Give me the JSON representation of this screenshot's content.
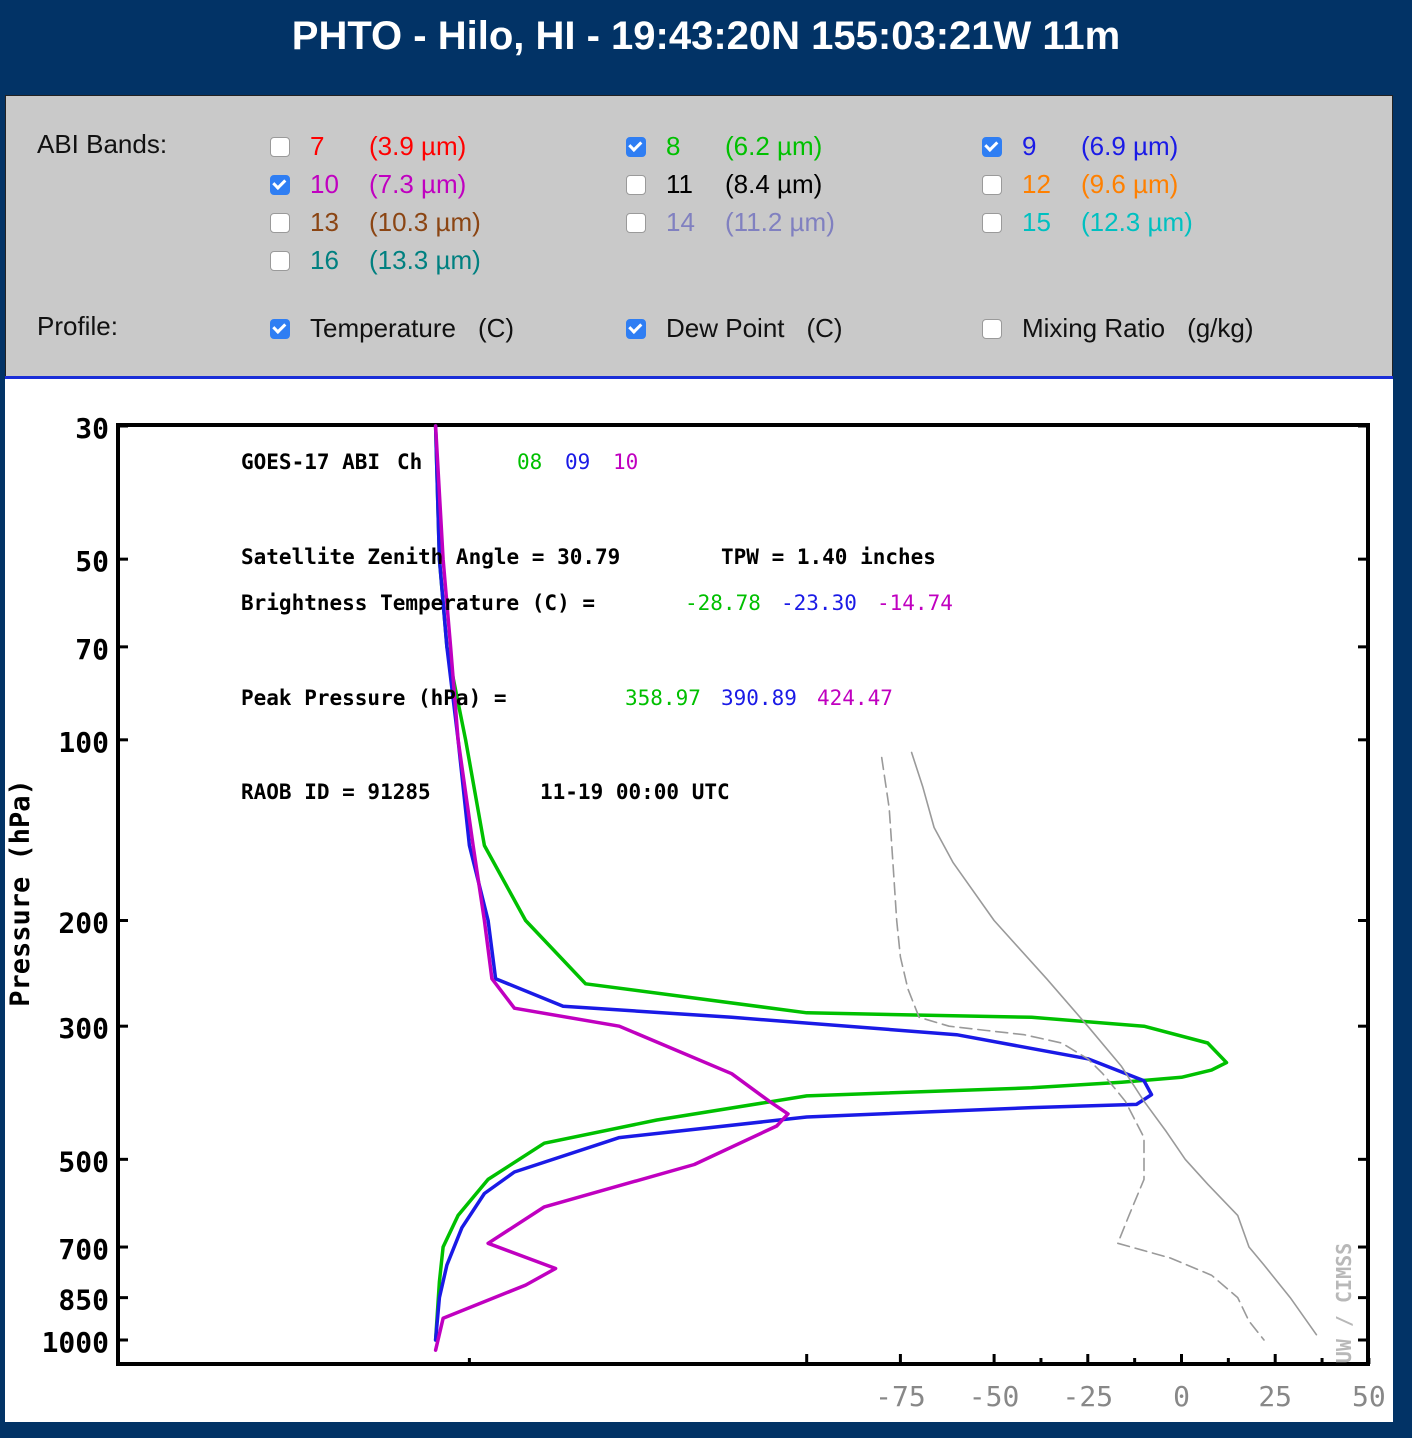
{
  "header": {
    "title": "PHTO - Hilo, HI - 19:43:20N 155:03:21W 11m"
  },
  "controls": {
    "abi_label": "ABI Bands:",
    "bands": [
      {
        "num": "7",
        "wl": "(3.9 µm)",
        "color": "#ff0000",
        "checked": false
      },
      {
        "num": "8",
        "wl": "(6.2 µm)",
        "color": "#00c000",
        "checked": true
      },
      {
        "num": "9",
        "wl": "(6.9 µm)",
        "color": "#1a1ae6",
        "checked": true
      },
      {
        "num": "10",
        "wl": "(7.3 µm)",
        "color": "#c000c0",
        "checked": true
      },
      {
        "num": "11",
        "wl": "(8.4 µm)",
        "color": "#000000",
        "checked": false
      },
      {
        "num": "12",
        "wl": "(9.6 µm)",
        "color": "#ff8000",
        "checked": false
      },
      {
        "num": "13",
        "wl": "(10.3 µm)",
        "color": "#8b4513",
        "checked": false
      },
      {
        "num": "14",
        "wl": "(11.2 µm)",
        "color": "#8080c0",
        "checked": false
      },
      {
        "num": "15",
        "wl": "(12.3 µm)",
        "color": "#00c0c0",
        "checked": false
      },
      {
        "num": "16",
        "wl": "(13.3 µm)",
        "color": "#008080",
        "checked": false
      }
    ],
    "profile_label": "Profile:",
    "profiles": [
      {
        "label": "Temperature",
        "unit": "(C)",
        "checked": true
      },
      {
        "label": "Dew Point",
        "unit": "(C)",
        "checked": true
      },
      {
        "label": "Mixing Ratio",
        "unit": "(g/kg)",
        "checked": false
      }
    ]
  },
  "chart_data": {
    "type": "line",
    "ylabel": "Pressure (hPa)",
    "y_scale": "log-pressure",
    "y_ticks": [
      30,
      50,
      70,
      100,
      200,
      300,
      500,
      700,
      850,
      1000
    ],
    "x_ticks": [
      "-75",
      "-50",
      "-25",
      "0",
      "25",
      "50"
    ],
    "xlim": [
      -200,
      50
    ],
    "ylim": [
      30,
      1050
    ],
    "watermark": "UW / CIMSS",
    "annotations": {
      "satellite": "GOES-17 ABI",
      "ch_label": "Ch",
      "channels": [
        "08",
        "09",
        "10"
      ],
      "zenith": "Satellite Zenith Angle = 30.79",
      "tpw": "TPW = 1.40 inches",
      "bt_label": "Brightness Temperature (C) =",
      "bt_values": [
        "-28.78",
        "-23.30",
        "-14.74"
      ],
      "peak_label": "Peak Pressure (hPa) =",
      "peak_values": [
        "358.97",
        "390.89",
        "424.47"
      ],
      "raob": "RAOB ID = 91285",
      "time": "11-19 00:00 UTC"
    },
    "series": [
      {
        "key": "band8",
        "color": "#00c000",
        "x": [
          -199,
          -198,
          -196,
          -191,
          -186,
          -175,
          -159,
          -100,
          -40,
          -10,
          7,
          12,
          8,
          0,
          -16,
          -40,
          -100,
          -140,
          -170,
          -185,
          -193,
          -197,
          -198,
          -199
        ],
        "p": [
          30,
          50,
          70,
          100,
          150,
          200,
          255,
          285,
          290,
          300,
          320,
          345,
          355,
          365,
          372,
          380,
          392,
          430,
          470,
          540,
          620,
          700,
          800,
          1000
        ]
      },
      {
        "key": "band9",
        "color": "#1a1ae6",
        "x": [
          -199,
          -198,
          -196,
          -193,
          -190,
          -185,
          -183,
          -165,
          -120,
          -60,
          -25,
          -10,
          -8,
          -12,
          -40,
          -100,
          -150,
          -178,
          -186,
          -192,
          -196,
          -198,
          -199
        ],
        "p": [
          30,
          50,
          70,
          100,
          150,
          200,
          250,
          278,
          290,
          310,
          340,
          370,
          390,
          405,
          410,
          425,
          460,
          525,
          570,
          650,
          750,
          850,
          1000
        ]
      },
      {
        "key": "band10",
        "color": "#c000c0",
        "x": [
          -199,
          -197,
          -195,
          -193,
          -189,
          -186,
          -184,
          -178,
          -150,
          -120,
          -110,
          -105,
          -108,
          -130,
          -170,
          -185,
          -167,
          -175,
          -197,
          -199
        ],
        "p": [
          30,
          50,
          70,
          100,
          150,
          200,
          250,
          280,
          300,
          360,
          400,
          420,
          440,
          510,
          600,
          690,
          760,
          810,
          920,
          1040
        ]
      },
      {
        "key": "temperature",
        "color": "#9a9a9a",
        "dash": false,
        "x": [
          -72,
          -69,
          -66,
          -61,
          -50,
          -36,
          -25,
          -16,
          -10,
          -4,
          1,
          7,
          15,
          18,
          22,
          29,
          36
        ],
        "p": [
          105,
          120,
          140,
          160,
          200,
          250,
          300,
          350,
          400,
          450,
          500,
          550,
          620,
          700,
          750,
          850,
          980
        ]
      },
      {
        "key": "dewpoint",
        "color": "#9a9a9a",
        "dash": true,
        "x": [
          -80,
          -78,
          -77,
          -76,
          -75,
          -73,
          -70,
          -62,
          -52,
          -42,
          -32,
          -25,
          -21,
          -15,
          -10,
          -10,
          -14,
          -17,
          -3,
          8,
          15,
          18,
          22
        ],
        "p": [
          107,
          130,
          160,
          200,
          230,
          260,
          290,
          300,
          305,
          310,
          320,
          340,
          360,
          400,
          460,
          540,
          620,
          690,
          730,
          780,
          850,
          930,
          1000
        ]
      }
    ]
  }
}
